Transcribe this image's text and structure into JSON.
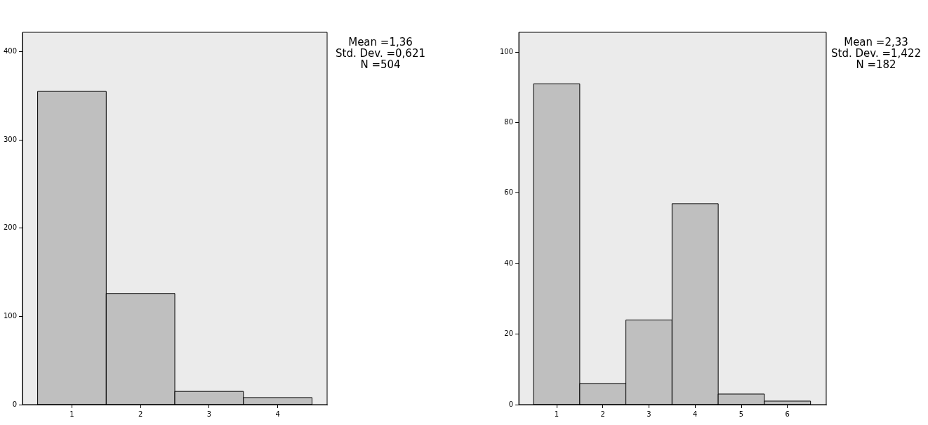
{
  "chart_data": [
    {
      "type": "histogram",
      "bins": [
        0.5,
        1.5,
        2.5,
        3.5,
        4.5
      ],
      "values": [
        355,
        126,
        15,
        8
      ],
      "color": "#bfbfbf",
      "xlim": [
        0.28,
        4.72
      ],
      "xticks": [
        1,
        2,
        3,
        4
      ],
      "ylim": [
        0,
        422
      ],
      "yticks": [
        0,
        100,
        200,
        300,
        400
      ],
      "grid": false,
      "legend": false,
      "annotations": [
        "Mean =1,36",
        "Std. Dev. =0,621",
        "N =504"
      ]
    },
    {
      "type": "histogram",
      "bins": [
        0.5,
        1.5,
        2.5,
        3.5,
        4.5,
        5.5,
        6.5
      ],
      "values": [
        91,
        6,
        24,
        57,
        3,
        1
      ],
      "color": "#bfbfbf",
      "xlim": [
        0.18,
        6.84
      ],
      "xticks": [
        1,
        2,
        3,
        4,
        5,
        6
      ],
      "ylim": [
        0,
        105.6
      ],
      "yticks": [
        0,
        20,
        40,
        60,
        80,
        100
      ],
      "grid": false,
      "legend": false,
      "annotations": [
        "Mean =2,33",
        "Std. Dev. =1,422",
        "N =182"
      ]
    }
  ]
}
